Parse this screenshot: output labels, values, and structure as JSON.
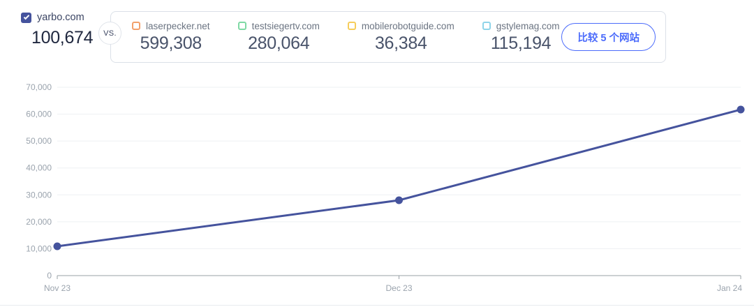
{
  "header": {
    "primary": {
      "domain": "yarbo.com",
      "value": "100,674",
      "color": "#45539D",
      "checked": true
    },
    "vs_label": "VS.",
    "competitors": [
      {
        "domain": "laserpecker.net",
        "value": "599,308",
        "color": "#F2A06B",
        "checked": false
      },
      {
        "domain": "testsiegertv.com",
        "value": "280,064",
        "color": "#7FD9A4",
        "checked": false
      },
      {
        "domain": "mobilerobotguide.com",
        "value": "36,384",
        "color": "#F6CD5B",
        "checked": false
      },
      {
        "domain": "gstylemag.com",
        "value": "115,194",
        "color": "#8ED4E9",
        "checked": false
      }
    ],
    "compare_button_label": "比较 5 个网站",
    "compare_button_color": "#4B6BFB"
  },
  "chart_data": {
    "type": "line",
    "title": "",
    "xlabel": "",
    "ylabel": "",
    "x": [
      "Nov 23",
      "Dec 23",
      "Jan 24"
    ],
    "series": [
      {
        "name": "yarbo.com",
        "values": [
          10900,
          28000,
          61700
        ],
        "color": "#45539D"
      }
    ],
    "ylim": [
      0,
      70000
    ],
    "yticks": [
      0,
      10000,
      20000,
      30000,
      40000,
      50000,
      60000,
      70000
    ],
    "grid": true,
    "legend": false,
    "axis_color": "#9aa0a6",
    "grid_color": "#eef0f3",
    "tick_label_color": "#9aa3ad"
  }
}
